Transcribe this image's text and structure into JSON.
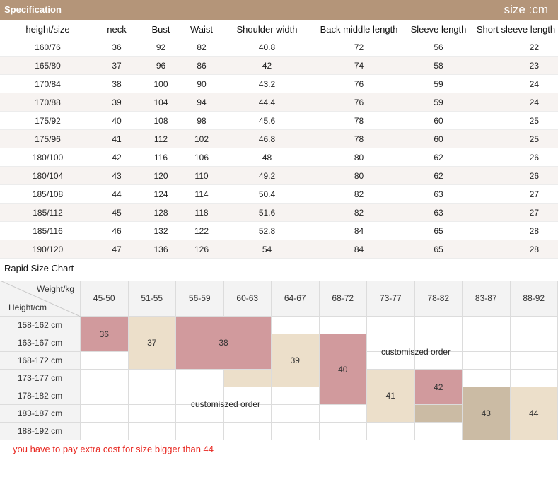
{
  "header": {
    "title": "Specification",
    "unit": "size :cm"
  },
  "spec": {
    "columns": [
      "height/size",
      "neck",
      "Bust",
      "Waist",
      "Shoulder width",
      "Back middle length",
      "Sleeve length",
      "Short sleeve length"
    ],
    "rows": [
      [
        "160/76",
        "36",
        "92",
        "82",
        "40.8",
        "72",
        "56",
        "22"
      ],
      [
        "165/80",
        "37",
        "96",
        "86",
        "42",
        "74",
        "58",
        "23"
      ],
      [
        "170/84",
        "38",
        "100",
        "90",
        "43.2",
        "76",
        "59",
        "24"
      ],
      [
        "170/88",
        "39",
        "104",
        "94",
        "44.4",
        "76",
        "59",
        "24"
      ],
      [
        "175/92",
        "40",
        "108",
        "98",
        "45.6",
        "78",
        "60",
        "25"
      ],
      [
        "175/96",
        "41",
        "112",
        "102",
        "46.8",
        "78",
        "60",
        "25"
      ],
      [
        "180/100",
        "42",
        "116",
        "106",
        "48",
        "80",
        "62",
        "26"
      ],
      [
        "180/104",
        "43",
        "120",
        "110",
        "49.2",
        "80",
        "62",
        "26"
      ],
      [
        "185/108",
        "44",
        "124",
        "114",
        "50.4",
        "82",
        "63",
        "27"
      ],
      [
        "185/112",
        "45",
        "128",
        "118",
        "51.6",
        "82",
        "63",
        "27"
      ],
      [
        "185/116",
        "46",
        "132",
        "122",
        "52.8",
        "84",
        "65",
        "28"
      ],
      [
        "190/120",
        "47",
        "136",
        "126",
        "54",
        "84",
        "65",
        "28"
      ]
    ]
  },
  "rapid": {
    "title": "Rapid Size Chart",
    "weight_label": "Weight/kg",
    "height_label": "Height/cm",
    "weights": [
      "45-50",
      "51-55",
      "56-59",
      "60-63",
      "64-67",
      "68-72",
      "73-77",
      "78-82",
      "83-87",
      "88-92"
    ],
    "heights": [
      "158-162 cm",
      "163-167 cm",
      "168-172 cm",
      "173-177 cm",
      "178-182 cm",
      "183-187 cm",
      "188-192 cm"
    ],
    "sizes": [
      {
        "label": "36",
        "color": "#d19a9d",
        "col_start": 0,
        "col_span": 1,
        "row_start": 0,
        "row_span": 2
      },
      {
        "label": "37",
        "color": "#ecdfca",
        "col_start": 1,
        "col_span": 1,
        "row_start": 0,
        "row_span": 3
      },
      {
        "label": "38",
        "color": "#d19a9d",
        "col_start": 2,
        "col_span": 2,
        "row_start": 0,
        "row_span": 3
      },
      {
        "label": "39",
        "color": "#ecdfca",
        "col_start": 4,
        "col_span": 1,
        "row_start": 1,
        "row_span": 3
      },
      {
        "label": "40",
        "color": "#d19a9d",
        "col_start": 5,
        "col_span": 1,
        "row_start": 1,
        "row_span": 4
      },
      {
        "label": "41",
        "color": "#ecdfca",
        "col_start": 6,
        "col_span": 1,
        "row_start": 3,
        "row_span": 3
      },
      {
        "label": "42",
        "color": "#d19a9d",
        "col_start": 7,
        "col_span": 1,
        "row_start": 3,
        "row_span": 2
      },
      {
        "label": "43",
        "color": "#cbbba4",
        "col_start": 8,
        "col_span": 1,
        "row_start": 4,
        "row_span": 3
      },
      {
        "label": "44",
        "color": "#ecdfca",
        "col_start": 9,
        "col_span": 1,
        "row_start": 4,
        "row_span": 3
      }
    ],
    "customized_label": "customiszed order",
    "footer_note": "you have to pay extra cost for size bigger than  44"
  }
}
